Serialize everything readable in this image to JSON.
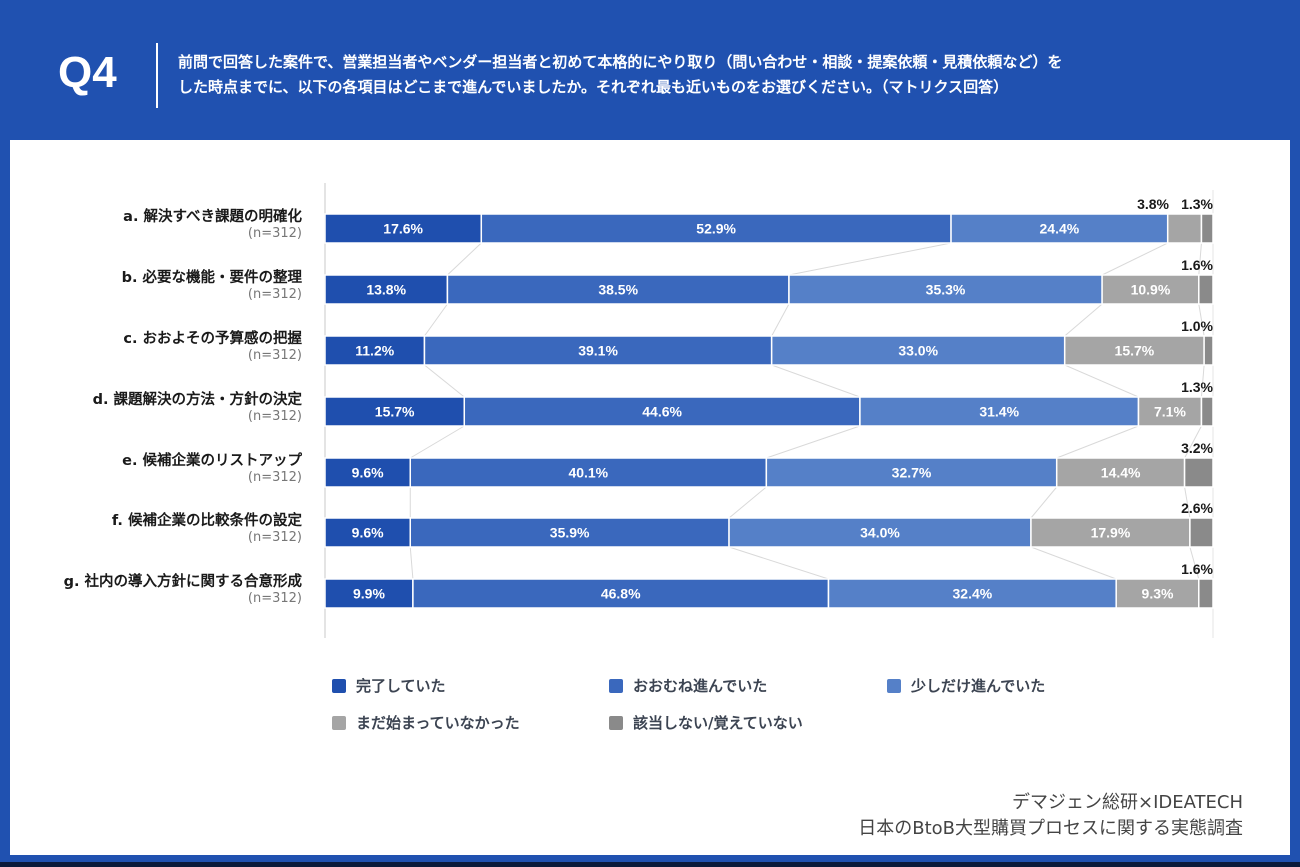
{
  "header": {
    "question_id": "Q4",
    "question_lines": [
      "前問で回答した案件で、営業担当者やベンダー担当者と初めて本格的にやり取り（問い合わせ・相談・提案依頼・見積依頼など）を",
      "した時点までに、以下の各項目はどこまで進んでいましたか。それぞれ最も近いものをお選びください。（マトリクス回答）"
    ]
  },
  "colors": {
    "frame": "#2051b0",
    "series": [
      "#1f4fae",
      "#3a68bd",
      "#5580c8",
      "#a5a5a5",
      "#8a8a8a"
    ]
  },
  "chart_data": {
    "type": "bar",
    "orientation": "horizontal",
    "stacked": true,
    "normalized_to": 100,
    "xlim": [
      0,
      100
    ],
    "categories": [
      {
        "label": "a. 解決すべき課題の明確化",
        "n": "(n=312)"
      },
      {
        "label": "b. 必要な機能・要件の整理",
        "n": "(n=312)"
      },
      {
        "label": "c. おおよその予算感の把握",
        "n": "(n=312)"
      },
      {
        "label": "d. 課題解決の方法・方針の決定",
        "n": "(n=312)"
      },
      {
        "label": "e. 候補企業のリストアップ",
        "n": "(n=312)"
      },
      {
        "label": "f. 候補企業の比較条件の設定",
        "n": "(n=312)"
      },
      {
        "label": "g. 社内の導入方針に関する合意形成",
        "n": "(n=312)"
      }
    ],
    "series": [
      {
        "name": "完了していた",
        "values": [
          17.6,
          13.8,
          11.2,
          15.7,
          9.6,
          9.6,
          9.9
        ],
        "labels": [
          "17.6%",
          "13.8%",
          "11.2%",
          "15.7%",
          "9.6%",
          "9.6%",
          "9.9%"
        ]
      },
      {
        "name": "おおむね進んでいた",
        "values": [
          52.9,
          38.5,
          39.1,
          44.6,
          40.1,
          35.9,
          46.8
        ],
        "labels": [
          "52.9%",
          "38.5%",
          "39.1%",
          "44.6%",
          "40.1%",
          "35.9%",
          "46.8%"
        ]
      },
      {
        "name": "少しだけ進んでいた",
        "values": [
          24.4,
          35.3,
          33.0,
          31.4,
          32.7,
          34.0,
          32.4
        ],
        "labels": [
          "24.4%",
          "35.3%",
          "33.0%",
          "31.4%",
          "32.7%",
          "34.0%",
          "32.4%"
        ]
      },
      {
        "name": "まだ始まっていなかった",
        "values": [
          3.8,
          10.9,
          15.7,
          7.1,
          14.4,
          17.9,
          9.3
        ],
        "labels": [
          "3.8%",
          "10.9%",
          "15.7%",
          "7.1%",
          "14.4%",
          "17.9%",
          "9.3%"
        ]
      },
      {
        "name": "該当しない/覚えていない",
        "values": [
          1.3,
          1.6,
          1.0,
          1.3,
          3.2,
          2.6,
          1.6
        ],
        "labels": [
          "1.3%",
          "1.6%",
          "1.0%",
          "1.3%",
          "3.2%",
          "2.6%",
          "1.6%"
        ]
      }
    ],
    "legend_position": "bottom",
    "connector_lines": true,
    "grid": false
  },
  "source": {
    "line1": "デマジェン総研×IDEATECH",
    "line2": "日本のBtoB大型購買プロセスに関する実態調査"
  }
}
